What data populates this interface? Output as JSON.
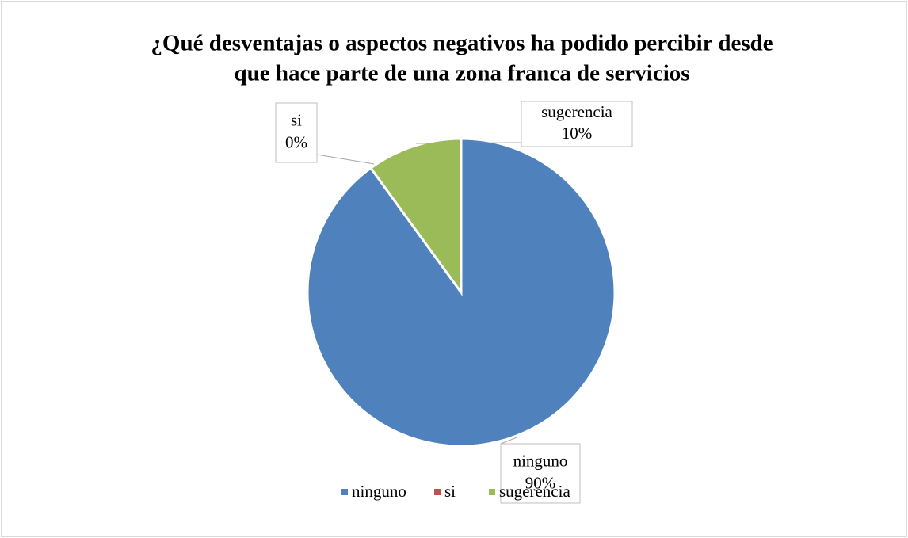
{
  "chart_data": {
    "type": "pie",
    "title": [
      "¿Qué desventajas o aspectos negativos ha podido percibir desde",
      "que hace parte de una zona franca de servicios"
    ],
    "categories": [
      "ninguno",
      "si",
      "sugerencia"
    ],
    "values": [
      90,
      0,
      10
    ],
    "value_labels": [
      "90%",
      "0%",
      "10%"
    ],
    "colors": [
      "#4f81bd",
      "#c0504d",
      "#9bbb59"
    ],
    "legend": "bottom"
  }
}
